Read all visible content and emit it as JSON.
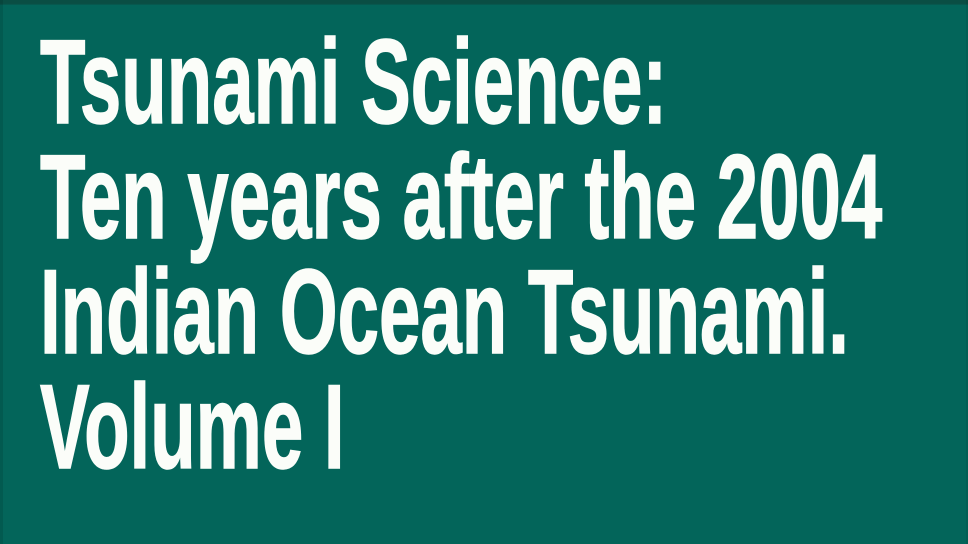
{
  "slide": {
    "background_color": "#03655a",
    "top_edge_color": "#0a4e44",
    "text_color": "#fbfdf9",
    "title_lines": [
      "Tsunami Science:",
      "Ten years after the 2004",
      "Indian Ocean Tsunami.",
      "Volume I"
    ]
  }
}
